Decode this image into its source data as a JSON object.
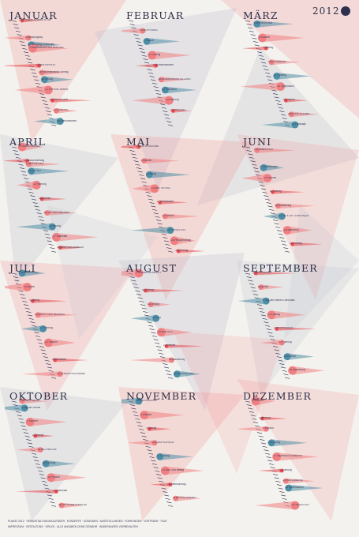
{
  "year": "2012",
  "months": [
    {
      "name": "JANUAR",
      "entries": [
        {
          "day": "1",
          "text": "NEUJAHR  Festsaal 10 Uhr"
        },
        {
          "day": "6",
          "text": "Dreikönigstag"
        },
        {
          "day": "8",
          "text": "Rundgang Kunsthalle"
        },
        {
          "day": "9",
          "text": "MUSIKALISCHER MONTAG"
        },
        {
          "day": "14",
          "text": "WINTERFEST"
        },
        {
          "day": "16",
          "text": "Hauptbibliothek Vortrag"
        },
        {
          "day": "18",
          "text": "Lesung"
        },
        {
          "day": "21",
          "text": "OFFENE BÜHNE"
        },
        {
          "day": "24",
          "text": "Kino im Keller"
        },
        {
          "day": "27",
          "text": "KONZERT"
        },
        {
          "day": "30",
          "text": "Freundeskreis"
        }
      ]
    },
    {
      "name": "FEBRUAR",
      "entries": [
        {
          "day": "4",
          "text": "ERÖFFNUNG"
        },
        {
          "day": "7",
          "text": "Podium"
        },
        {
          "day": "11",
          "text": "Lesung"
        },
        {
          "day": "14",
          "text": "Kunsthandwerk"
        },
        {
          "day": "18",
          "text": "SONDERAUSSTELLUNG"
        },
        {
          "day": "21",
          "text": "Fastnacht"
        },
        {
          "day": "24",
          "text": "Führung"
        },
        {
          "day": "27",
          "text": "VORTRAG"
        }
      ]
    },
    {
      "name": "MÄRZ",
      "entries": [
        {
          "day": "2",
          "text": "WERKSCHAU"
        },
        {
          "day": "6",
          "text": "Konzert"
        },
        {
          "day": "9",
          "text": "Lesung"
        },
        {
          "day": "13",
          "text": "FILMABEND"
        },
        {
          "day": "17",
          "text": "Frühling"
        },
        {
          "day": "20",
          "text": "Symposium"
        },
        {
          "day": "24",
          "text": "Podium"
        },
        {
          "day": "28",
          "text": "AUSSTELLUNG"
        },
        {
          "day": "31",
          "text": "Finissage"
        }
      ]
    },
    {
      "name": "APRIL",
      "entries": [
        {
          "day": "1",
          "text": "PALMSONNTAG"
        },
        {
          "day": "5",
          "text": "Gründonnerstag"
        },
        {
          "day": "6",
          "text": "KARFREITAG"
        },
        {
          "day": "8",
          "text": "OSTERN"
        },
        {
          "day": "12",
          "text": "Führung"
        },
        {
          "day": "16",
          "text": "Konzert"
        },
        {
          "day": "20",
          "text": "TAG DER BÜCHER"
        },
        {
          "day": "24",
          "text": "Lesung"
        },
        {
          "day": "27",
          "text": "Werkstatt"
        },
        {
          "day": "30",
          "text": "WALPURGISNACHT"
        }
      ]
    },
    {
      "name": "MAI",
      "entries": [
        {
          "day": "1",
          "text": "TANZ IN DEN MAI"
        },
        {
          "day": "5",
          "text": "Konzert"
        },
        {
          "day": "9",
          "text": "Lesung"
        },
        {
          "day": "13",
          "text": "MUTTERTAG"
        },
        {
          "day": "17",
          "text": "Himmelfahrt"
        },
        {
          "day": "21",
          "text": "Podium"
        },
        {
          "day": "25",
          "text": "PFINGSTEN"
        },
        {
          "day": "28",
          "text": "Pfingstmontag"
        },
        {
          "day": "31",
          "text": "Führung"
        }
      ]
    },
    {
      "name": "JUNI",
      "entries": [
        {
          "day": "2",
          "text": "SOMMERFEST"
        },
        {
          "day": "7",
          "text": "Fronleichnam"
        },
        {
          "day": "10",
          "text": "Konzert"
        },
        {
          "day": "14",
          "text": "Lesung"
        },
        {
          "day": "18",
          "text": "Ausstellung"
        },
        {
          "day": "21",
          "text": "FÊTE DE LA MUSIQUE"
        },
        {
          "day": "25",
          "text": "Workshop"
        },
        {
          "day": "29",
          "text": "Führung"
        }
      ]
    },
    {
      "name": "JULI",
      "entries": [
        {
          "day": "1",
          "text": "SOMMERKINO"
        },
        {
          "day": "5",
          "text": "Konzert"
        },
        {
          "day": "9",
          "text": "Lesung"
        },
        {
          "day": "13",
          "text": "NACHT DER MUSEEN"
        },
        {
          "day": "17",
          "text": "Führung"
        },
        {
          "day": "21",
          "text": "Podium"
        },
        {
          "day": "26",
          "text": "Werkstatt"
        },
        {
          "day": "30",
          "text": "FERIENPROGRAMM"
        }
      ]
    },
    {
      "name": "AUGUST",
      "entries": [
        {
          "day": "1",
          "text": "SOMMERKONZERT"
        },
        {
          "day": "6",
          "text": "Führung"
        },
        {
          "day": "10",
          "text": "Lesung"
        },
        {
          "day": "14",
          "text": "Kino"
        },
        {
          "day": "18",
          "text": "HOFFEST"
        },
        {
          "day": "22",
          "text": "Podium"
        },
        {
          "day": "26",
          "text": "Ausstellung"
        },
        {
          "day": "30",
          "text": "WERKSCHAU"
        }
      ]
    },
    {
      "name": "SEPTEMBER",
      "entries": [
        {
          "day": "1",
          "text": "SAISONSTART"
        },
        {
          "day": "5",
          "text": "Konzert"
        },
        {
          "day": "9",
          "text": "Tag des offenen Denkmals"
        },
        {
          "day": "13",
          "text": "Lesung"
        },
        {
          "day": "17",
          "text": "VERNISSAGE"
        },
        {
          "day": "21",
          "text": "Führung"
        },
        {
          "day": "25",
          "text": "Podium"
        },
        {
          "day": "29",
          "text": "Ausstellung"
        }
      ]
    },
    {
      "name": "OKTOBER",
      "entries": [
        {
          "day": "1",
          "text": "HERBSTSALON"
        },
        {
          "day": "3",
          "text": "Tag der Einheit"
        },
        {
          "day": "7",
          "text": "Konzert"
        },
        {
          "day": "11",
          "text": "Lesung"
        },
        {
          "day": "15",
          "text": "BUCHMESSE"
        },
        {
          "day": "19",
          "text": "Führung"
        },
        {
          "day": "23",
          "text": "Podium"
        },
        {
          "day": "27",
          "text": "Werkstatt"
        },
        {
          "day": "31",
          "text": "REFORMATIONSTAG"
        }
      ]
    },
    {
      "name": "NOVEMBER",
      "entries": [
        {
          "day": "1",
          "text": "ALLERHEILIGEN"
        },
        {
          "day": "5",
          "text": "Konzert"
        },
        {
          "day": "9",
          "text": "Lesung"
        },
        {
          "day": "13",
          "text": "KURZFILMTAGE"
        },
        {
          "day": "17",
          "text": "Führung"
        },
        {
          "day": "21",
          "text": "Buß- und Bettag"
        },
        {
          "day": "25",
          "text": "Totensonntag"
        },
        {
          "day": "29",
          "text": "ADVENTSMARKT"
        }
      ]
    },
    {
      "name": "DEZEMBER",
      "entries": [
        {
          "day": "1",
          "text": "ADVENT"
        },
        {
          "day": "6",
          "text": "Nikolaus"
        },
        {
          "day": "9",
          "text": "Konzert"
        },
        {
          "day": "13",
          "text": "Lesung"
        },
        {
          "day": "17",
          "text": "WEIHNACHTSMARKT"
        },
        {
          "day": "21",
          "text": "Führung"
        },
        {
          "day": "24",
          "text": "HEILIGABEND"
        },
        {
          "day": "26",
          "text": "Weihnachten"
        },
        {
          "day": "31",
          "text": "SILVESTER"
        }
      ]
    }
  ],
  "footer": {
    "line1": "PLAKAT 2012 · VERANSTALTUNGSKALENDER · KONZERTE · LESUNGEN · AUSSTELLUNGEN · FÜHRUNGEN · VORTRÄGE · FILM",
    "line2": "IMPRESSUM · GESTALTUNG · DRUCK · ALLE ANGABEN OHNE GEWÄHR · ÄNDERUNGEN VORBEHALTEN"
  },
  "colors": {
    "pink": "#f07f82",
    "red": "#e8494f",
    "blue": "#4d8ea6",
    "navy": "#2d2f4e",
    "grey": "#b9bccb",
    "bg": "#f4f2ee"
  }
}
